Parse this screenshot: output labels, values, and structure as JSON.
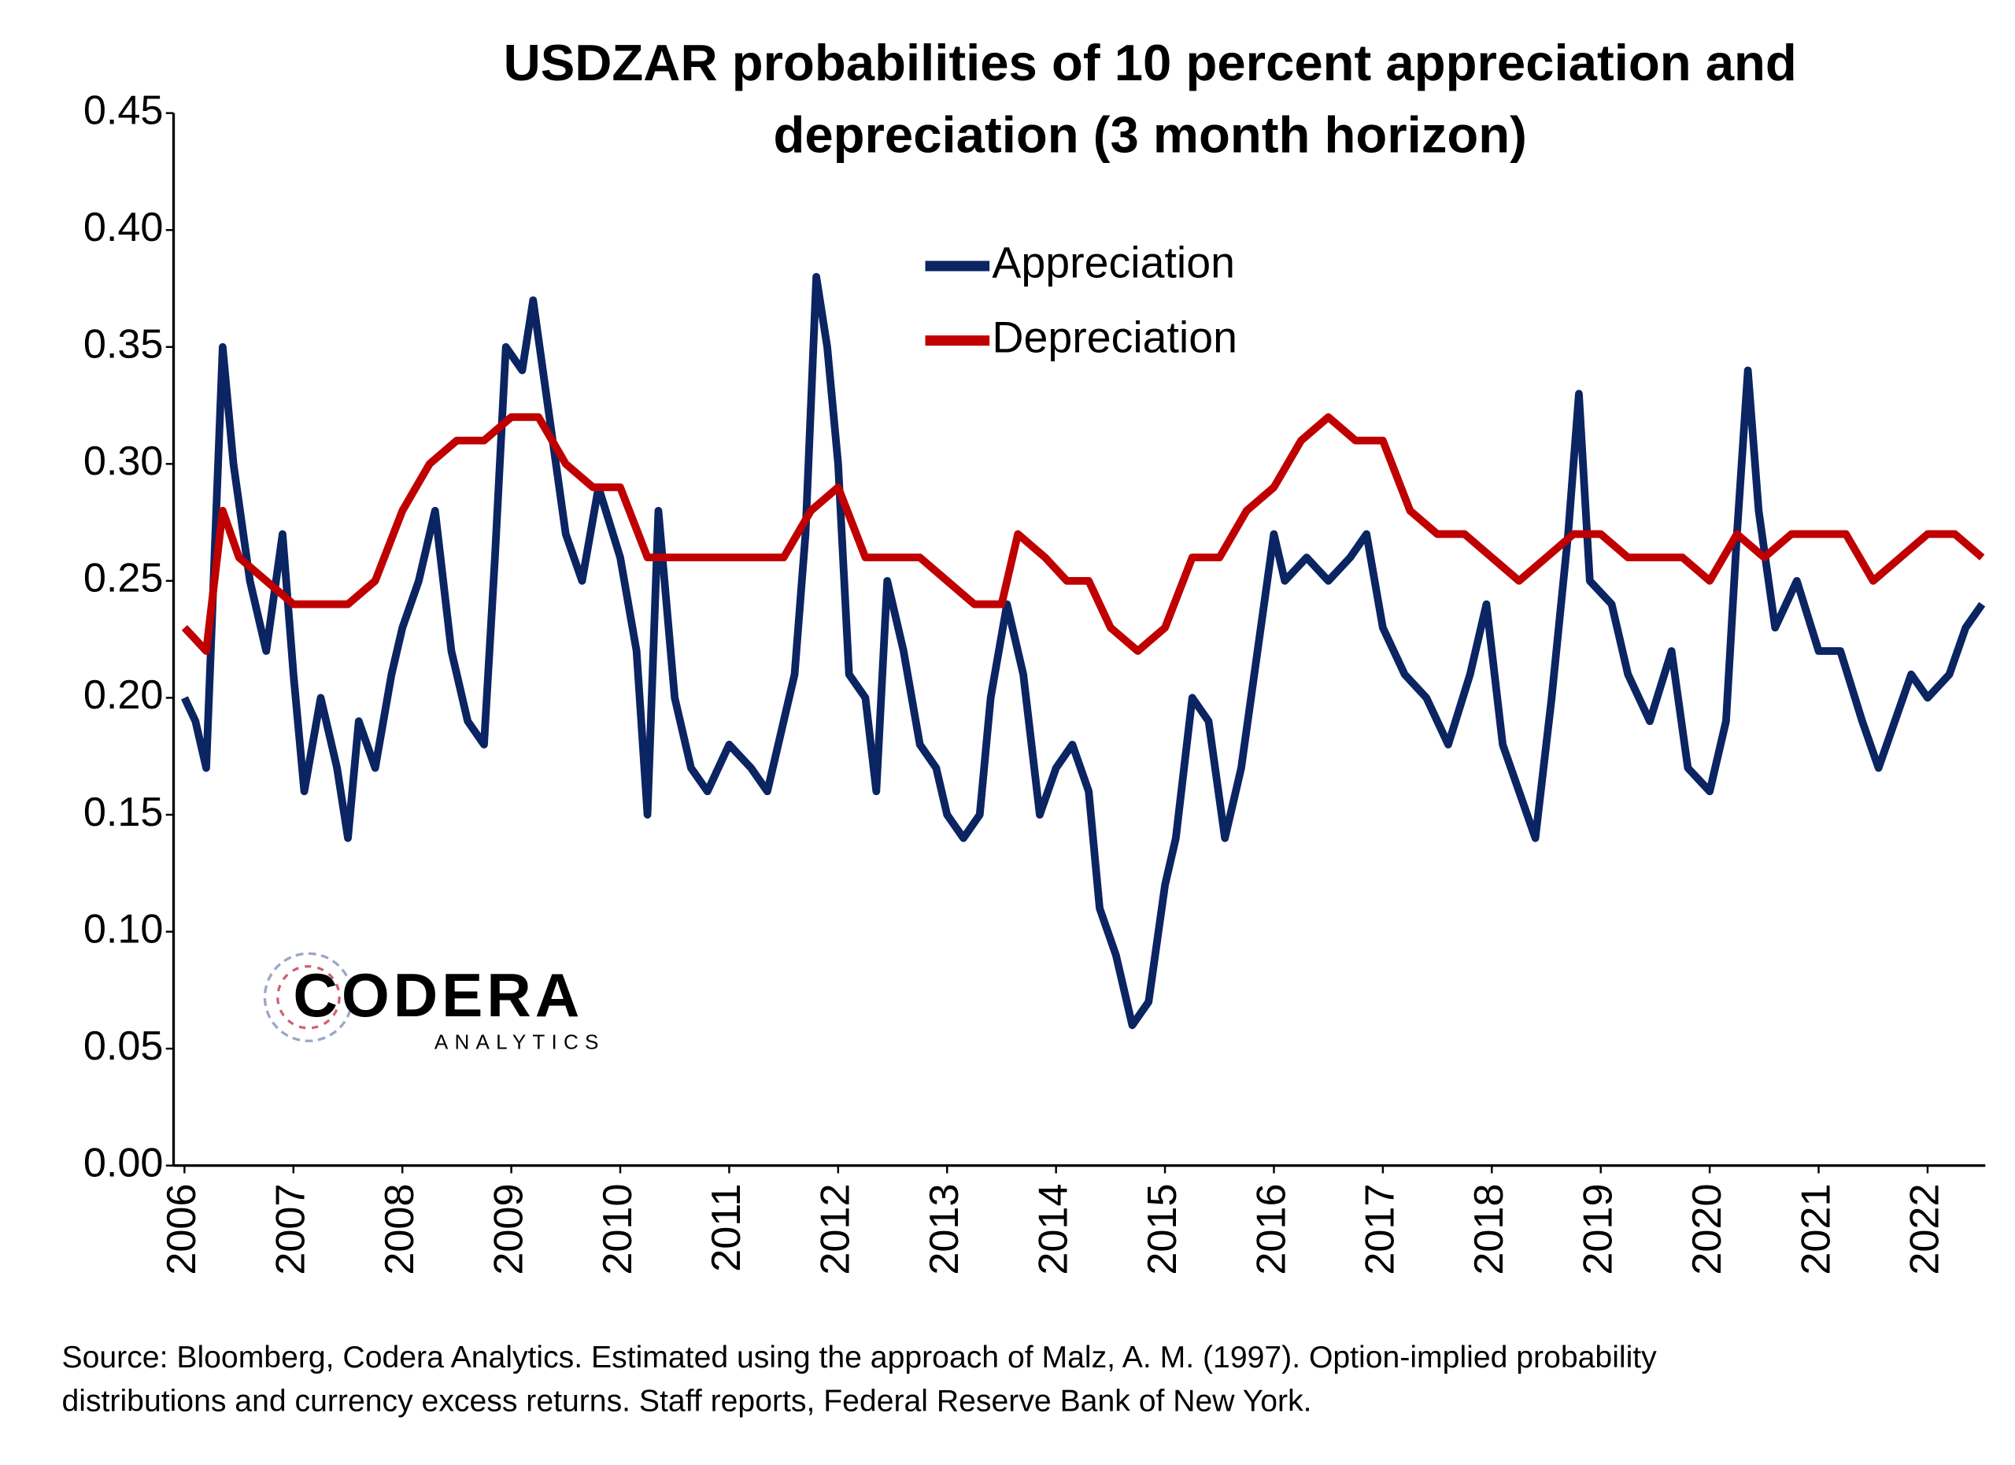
{
  "chart_data": {
    "type": "line",
    "title": [
      "USDZAR probabilities of 10 percent appreciation and",
      "depreciation (3 month horizon)"
    ],
    "source": [
      "Source: Bloomberg, Codera Analytics. Estimated using the approach of Malz, A. M. (1997). Option-implied probability",
      "distributions and currency excess returns. Staff reports, Federal Reserve Bank of New York."
    ],
    "logo": {
      "name": "CODERA",
      "sub": "ANALYTICS"
    },
    "xlim": [
      2005.9,
      2022.53
    ],
    "xticks": [
      2006,
      2007,
      2008,
      2009,
      2010,
      2011,
      2012,
      2013,
      2014,
      2015,
      2016,
      2017,
      2018,
      2019,
      2020,
      2021,
      2022
    ],
    "ylim": [
      0,
      0.45
    ],
    "yticks": [
      {
        "value": 0,
        "label": "0.00"
      },
      0.05,
      {
        "value": 0.1,
        "label": "0.10"
      },
      0.15,
      {
        "value": 0.2,
        "label": "0.20"
      },
      0.25,
      {
        "value": 0.3,
        "label": "0.30"
      },
      0.35,
      {
        "value": 0.4,
        "label": "0.40"
      },
      0.45
    ],
    "legend": "upper center",
    "series": [
      {
        "name": "Appreciation",
        "color": "#0b2462",
        "x": [
          2006.0,
          2006.1,
          2006.2,
          2006.35,
          2006.45,
          2006.6,
          2006.75,
          2006.9,
          2007.0,
          2007.1,
          2007.25,
          2007.4,
          2007.5,
          2007.6,
          2007.75,
          2007.9,
          2008.0,
          2008.15,
          2008.3,
          2008.45,
          2008.6,
          2008.75,
          2008.85,
          2008.95,
          2009.1,
          2009.2,
          2009.35,
          2009.5,
          2009.65,
          2009.8,
          2010.0,
          2010.15,
          2010.25,
          2010.35,
          2010.5,
          2010.65,
          2010.8,
          2011.0,
          2011.2,
          2011.35,
          2011.5,
          2011.6,
          2011.7,
          2011.8,
          2011.9,
          2012.0,
          2012.1,
          2012.25,
          2012.35,
          2012.45,
          2012.6,
          2012.75,
          2012.9,
          2013.0,
          2013.15,
          2013.3,
          2013.4,
          2013.55,
          2013.7,
          2013.85,
          2014.0,
          2014.15,
          2014.3,
          2014.4,
          2014.55,
          2014.7,
          2014.85,
          2015.0,
          2015.1,
          2015.25,
          2015.4,
          2015.55,
          2015.7,
          2015.85,
          2016.0,
          2016.1,
          2016.3,
          2016.5,
          2016.7,
          2016.85,
          2017.0,
          2017.2,
          2017.4,
          2017.6,
          2017.8,
          2017.95,
          2018.1,
          2018.25,
          2018.4,
          2018.55,
          2018.7,
          2018.8,
          2018.9,
          2019.1,
          2019.25,
          2019.45,
          2019.65,
          2019.8,
          2020.0,
          2020.15,
          2020.25,
          2020.35,
          2020.45,
          2020.6,
          2020.8,
          2021.0,
          2021.2,
          2021.4,
          2021.55,
          2021.7,
          2021.85,
          2022.0,
          2022.2,
          2022.35,
          2022.5
        ],
        "values": [
          0.2,
          0.19,
          0.17,
          0.35,
          0.3,
          0.25,
          0.22,
          0.27,
          0.21,
          0.16,
          0.2,
          0.17,
          0.14,
          0.19,
          0.17,
          0.21,
          0.23,
          0.25,
          0.28,
          0.22,
          0.19,
          0.18,
          0.26,
          0.35,
          0.34,
          0.37,
          0.32,
          0.27,
          0.25,
          0.29,
          0.26,
          0.22,
          0.15,
          0.28,
          0.2,
          0.17,
          0.16,
          0.18,
          0.17,
          0.16,
          0.19,
          0.21,
          0.27,
          0.38,
          0.35,
          0.3,
          0.21,
          0.2,
          0.16,
          0.25,
          0.22,
          0.18,
          0.17,
          0.15,
          0.14,
          0.15,
          0.2,
          0.24,
          0.21,
          0.15,
          0.17,
          0.18,
          0.16,
          0.11,
          0.09,
          0.06,
          0.07,
          0.12,
          0.14,
          0.2,
          0.19,
          0.14,
          0.17,
          0.22,
          0.27,
          0.25,
          0.26,
          0.25,
          0.26,
          0.27,
          0.23,
          0.21,
          0.2,
          0.18,
          0.21,
          0.24,
          0.18,
          0.16,
          0.14,
          0.2,
          0.27,
          0.33,
          0.25,
          0.24,
          0.21,
          0.19,
          0.22,
          0.17,
          0.16,
          0.19,
          0.27,
          0.34,
          0.28,
          0.23,
          0.25,
          0.22,
          0.22,
          0.19,
          0.17,
          0.19,
          0.21,
          0.2,
          0.21,
          0.23,
          0.24
        ]
      },
      {
        "name": "Depreciation",
        "color": "#c00000",
        "x": [
          2006.0,
          2006.2,
          2006.35,
          2006.5,
          2006.75,
          2007.0,
          2007.25,
          2007.5,
          2007.75,
          2008.0,
          2008.25,
          2008.5,
          2008.75,
          2009.0,
          2009.25,
          2009.5,
          2009.75,
          2010.0,
          2010.25,
          2010.5,
          2010.75,
          2011.0,
          2011.25,
          2011.5,
          2011.75,
          2012.0,
          2012.25,
          2012.5,
          2012.75,
          2013.0,
          2013.25,
          2013.5,
          2013.65,
          2013.9,
          2014.1,
          2014.3,
          2014.5,
          2014.75,
          2015.0,
          2015.25,
          2015.5,
          2015.75,
          2016.0,
          2016.25,
          2016.5,
          2016.75,
          2017.0,
          2017.25,
          2017.5,
          2017.75,
          2018.0,
          2018.25,
          2018.5,
          2018.75,
          2019.0,
          2019.25,
          2019.5,
          2019.75,
          2020.0,
          2020.25,
          2020.5,
          2020.75,
          2021.0,
          2021.25,
          2021.5,
          2021.75,
          2022.0,
          2022.25,
          2022.5
        ],
        "values": [
          0.23,
          0.22,
          0.28,
          0.26,
          0.25,
          0.24,
          0.24,
          0.24,
          0.25,
          0.28,
          0.3,
          0.31,
          0.31,
          0.32,
          0.32,
          0.3,
          0.29,
          0.29,
          0.26,
          0.26,
          0.26,
          0.26,
          0.26,
          0.26,
          0.28,
          0.29,
          0.26,
          0.26,
          0.26,
          0.25,
          0.24,
          0.24,
          0.27,
          0.26,
          0.25,
          0.25,
          0.23,
          0.22,
          0.23,
          0.26,
          0.26,
          0.28,
          0.29,
          0.31,
          0.32,
          0.31,
          0.31,
          0.28,
          0.27,
          0.27,
          0.26,
          0.25,
          0.26,
          0.27,
          0.27,
          0.26,
          0.26,
          0.26,
          0.25,
          0.27,
          0.26,
          0.27,
          0.27,
          0.27,
          0.25,
          0.26,
          0.27,
          0.27,
          0.26
        ]
      }
    ]
  }
}
